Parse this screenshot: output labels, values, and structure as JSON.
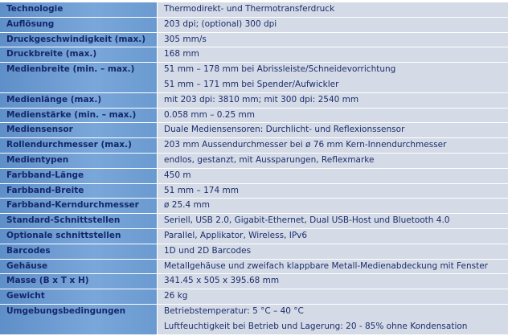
{
  "table": {
    "rows": [
      {
        "label": "Technologie",
        "values": [
          "Thermodirekt- und Thermotransferdruck"
        ]
      },
      {
        "label": "Auflösung",
        "values": [
          "203 dpi; (optional) 300 dpi"
        ]
      },
      {
        "label": "Druckgeschwindigkeit (max.)",
        "values": [
          "305 mm/s"
        ]
      },
      {
        "label": "Druckbreite (max.)",
        "values": [
          "168 mm"
        ]
      },
      {
        "label": "Medienbreite (min. – max.)",
        "values": [
          "51 mm – 178 mm bei Abrissleiste/Schneidevorrichtung",
          "51 mm – 171 mm bei Spender/Aufwickler"
        ]
      },
      {
        "label": "Medienlänge (max.)",
        "values": [
          "mit 203 dpi: 3810 mm; mit 300 dpi: 2540 mm"
        ]
      },
      {
        "label": "Medienstärke (min. – max.)",
        "values": [
          "0.058 mm – 0.25 mm"
        ]
      },
      {
        "label": "Mediensensor",
        "values": [
          "Duale Mediensensoren: Durchlicht- und Reflexionssensor"
        ]
      },
      {
        "label": "Rollendurchmesser (max.)",
        "values": [
          "203 mm Aussendurchmesser bei ø 76 mm Kern-Innendurchmesser"
        ]
      },
      {
        "label": "Medientypen",
        "values": [
          "endlos, gestanzt, mit Aussparungen, Reflexmarke"
        ]
      },
      {
        "label": "Farbband-Länge",
        "values": [
          "450 m"
        ]
      },
      {
        "label": "Farbband-Breite",
        "values": [
          "51 mm – 174 mm"
        ]
      },
      {
        "label": "Farbband-Kerndurchmesser",
        "values": [
          "ø 25.4 mm"
        ]
      },
      {
        "label": "Standard-Schnittstellen",
        "values": [
          "Seriell, USB 2.0, Gigabit-Ethernet, Dual USB-Host und Bluetooth 4.0"
        ]
      },
      {
        "label": "Optionale schnittstellen",
        "values": [
          "Parallel, Applikator, Wireless, IPv6"
        ]
      },
      {
        "label": "Barcodes",
        "values": [
          "1D und 2D Barcodes"
        ]
      },
      {
        "label": "Gehäuse",
        "values": [
          "Metallgehäuse und zweifach klappbare Metall-Medienabdeckung mit Fenster"
        ]
      },
      {
        "label": "Masse (B x T x H)",
        "values": [
          "341.45 x 505 x 395.68 mm"
        ]
      },
      {
        "label": "Gewicht",
        "values": [
          "26 kg"
        ]
      },
      {
        "label": "Umgebungsbedingungen",
        "values": [
          "Betriebstemperatur: 5 °C – 40 °C",
          "Luftfeuchtigkeit bei Betrieb und Lagerung: 20 - 85% ohne Kondensation"
        ]
      }
    ]
  }
}
